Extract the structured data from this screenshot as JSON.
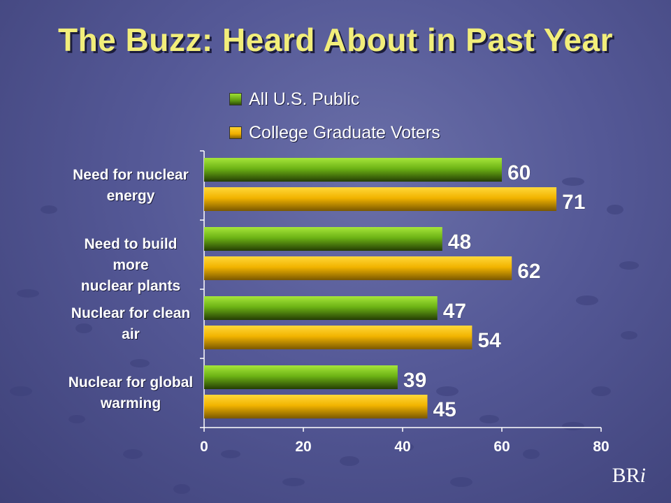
{
  "title": "The Buzz: Heard About in Past Year",
  "watermark": {
    "prefix": "BR",
    "suffix": "i"
  },
  "colors": {
    "green": "#7cc21c",
    "gold": "#f5bd00",
    "title": "#f2ee7a"
  },
  "chart_data": {
    "type": "bar",
    "orientation": "horizontal",
    "categories": [
      [
        "Need for nuclear",
        "energy"
      ],
      [
        "Need to build more",
        "nuclear plants"
      ],
      [
        "Nuclear for clean",
        "air"
      ],
      [
        "Nuclear for global",
        "warming"
      ]
    ],
    "series": [
      {
        "name": "All U.S. Public",
        "values": [
          60,
          48,
          47,
          39
        ],
        "color": "#7cc21c"
      },
      {
        "name": "College Graduate Voters",
        "values": [
          71,
          62,
          54,
          45
        ],
        "color": "#f5bd00"
      }
    ],
    "xlim": [
      0,
      80
    ],
    "xticks": [
      "0",
      "20",
      "40",
      "60",
      "80"
    ],
    "legend_position": "top",
    "grid": false
  }
}
